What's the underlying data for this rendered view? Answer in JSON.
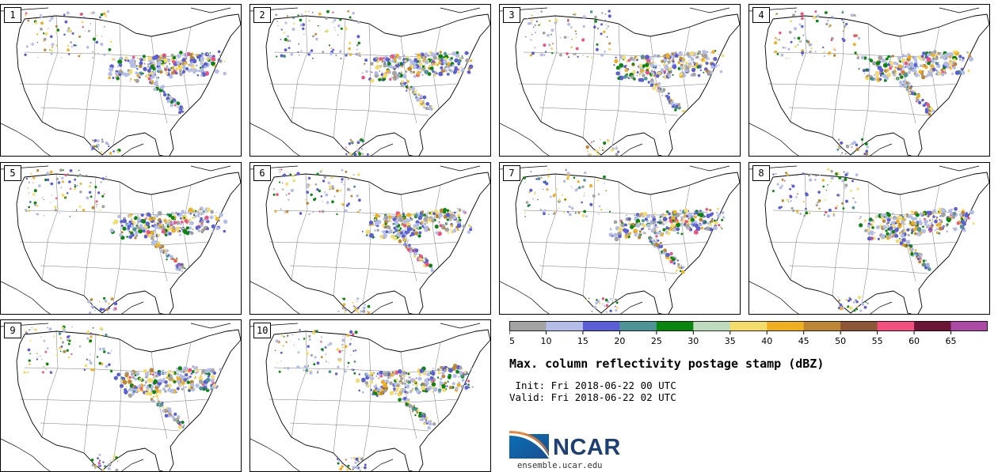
{
  "panels": [
    {
      "label": "1"
    },
    {
      "label": "2"
    },
    {
      "label": "3"
    },
    {
      "label": "4"
    },
    {
      "label": "5"
    },
    {
      "label": "6"
    },
    {
      "label": "7"
    },
    {
      "label": "8"
    },
    {
      "label": "9"
    },
    {
      "label": "10"
    }
  ],
  "colorbar": {
    "colors": [
      "#a3a3a3",
      "#b3bde8",
      "#5a5fd6",
      "#4e9497",
      "#09860d",
      "#bedbbe",
      "#f3dc6a",
      "#eeb020",
      "#bd8632",
      "#8c5637",
      "#f25180",
      "#6c1637",
      "#ab4aa5"
    ],
    "ticks": [
      "5",
      "10",
      "15",
      "20",
      "25",
      "30",
      "35",
      "40",
      "45",
      "50",
      "55",
      "60",
      "65"
    ]
  },
  "title": "Max. column reflectivity postage stamp (dBZ)",
  "init": " Init: Fri 2018-06-22 00 UTC",
  "valid": "Valid: Fri 2018-06-22 02 UTC",
  "logo": {
    "name": "NCAR",
    "url": "ensemble.ucar.edu"
  }
}
